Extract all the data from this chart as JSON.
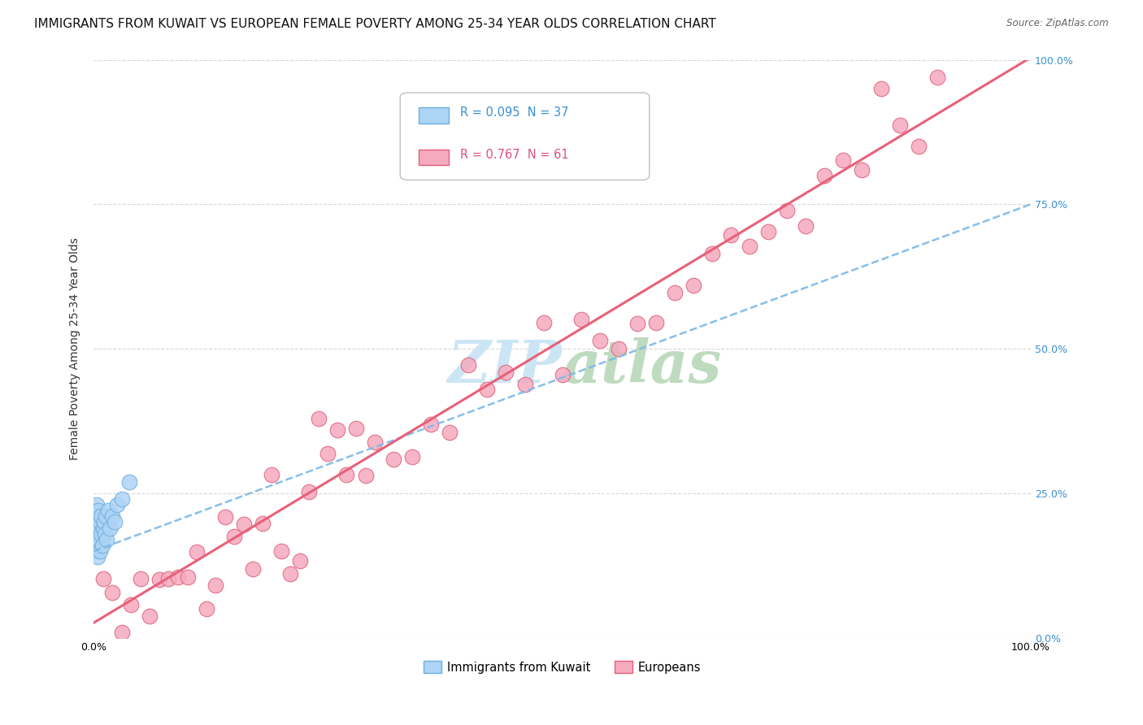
{
  "title": "IMMIGRANTS FROM KUWAIT VS EUROPEAN FEMALE POVERTY AMONG 25-34 YEAR OLDS CORRELATION CHART",
  "source": "Source: ZipAtlas.com",
  "ylabel": "Female Poverty Among 25-34 Year Olds",
  "xlim": [
    0,
    1
  ],
  "ylim": [
    0,
    1
  ],
  "legend_r1": "R = 0.095",
  "legend_n1": "N = 37",
  "legend_r2": "R = 0.767",
  "legend_n2": "N = 61",
  "color_kuwait": "#aed4f5",
  "color_european": "#f5aabe",
  "color_kuwait_edge": "#6aaee0",
  "color_european_edge": "#e0607a",
  "trendline_kuwait_color": "#7ab8e8",
  "trendline_european_color": "#e8607a",
  "background_color": "#ffffff",
  "watermark_color": "#cce5f5",
  "grid_color": "#d8d8d8",
  "title_fontsize": 11,
  "axis_fontsize": 10,
  "tick_fontsize": 9
}
